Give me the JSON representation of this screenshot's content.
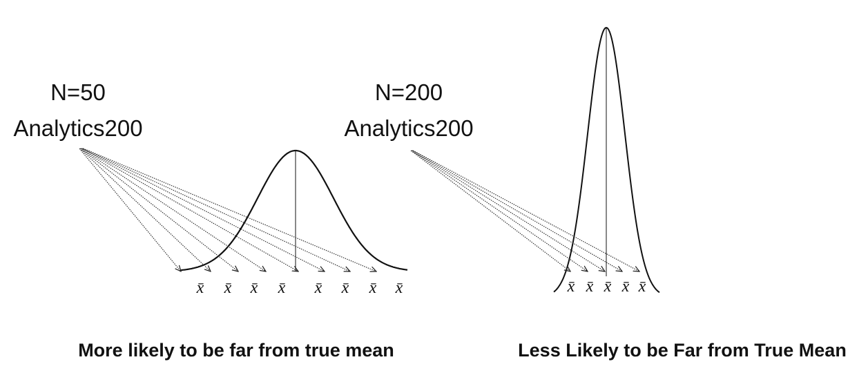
{
  "panels": [
    {
      "title": "N=50",
      "subtitle": "Analytics200",
      "labels": [
        "x̄",
        "x̄",
        "x̄",
        "x̄",
        "x̄",
        "x̄",
        "x̄",
        "x̄"
      ],
      "caption": "More likely to be far from true mean"
    },
    {
      "title": "N=200",
      "subtitle": "Analytics200",
      "labels": [
        "x̄",
        "x̄",
        "x̄",
        "x̄",
        "x̄"
      ],
      "caption": "Less Likely to be Far from True Mean"
    }
  ]
}
